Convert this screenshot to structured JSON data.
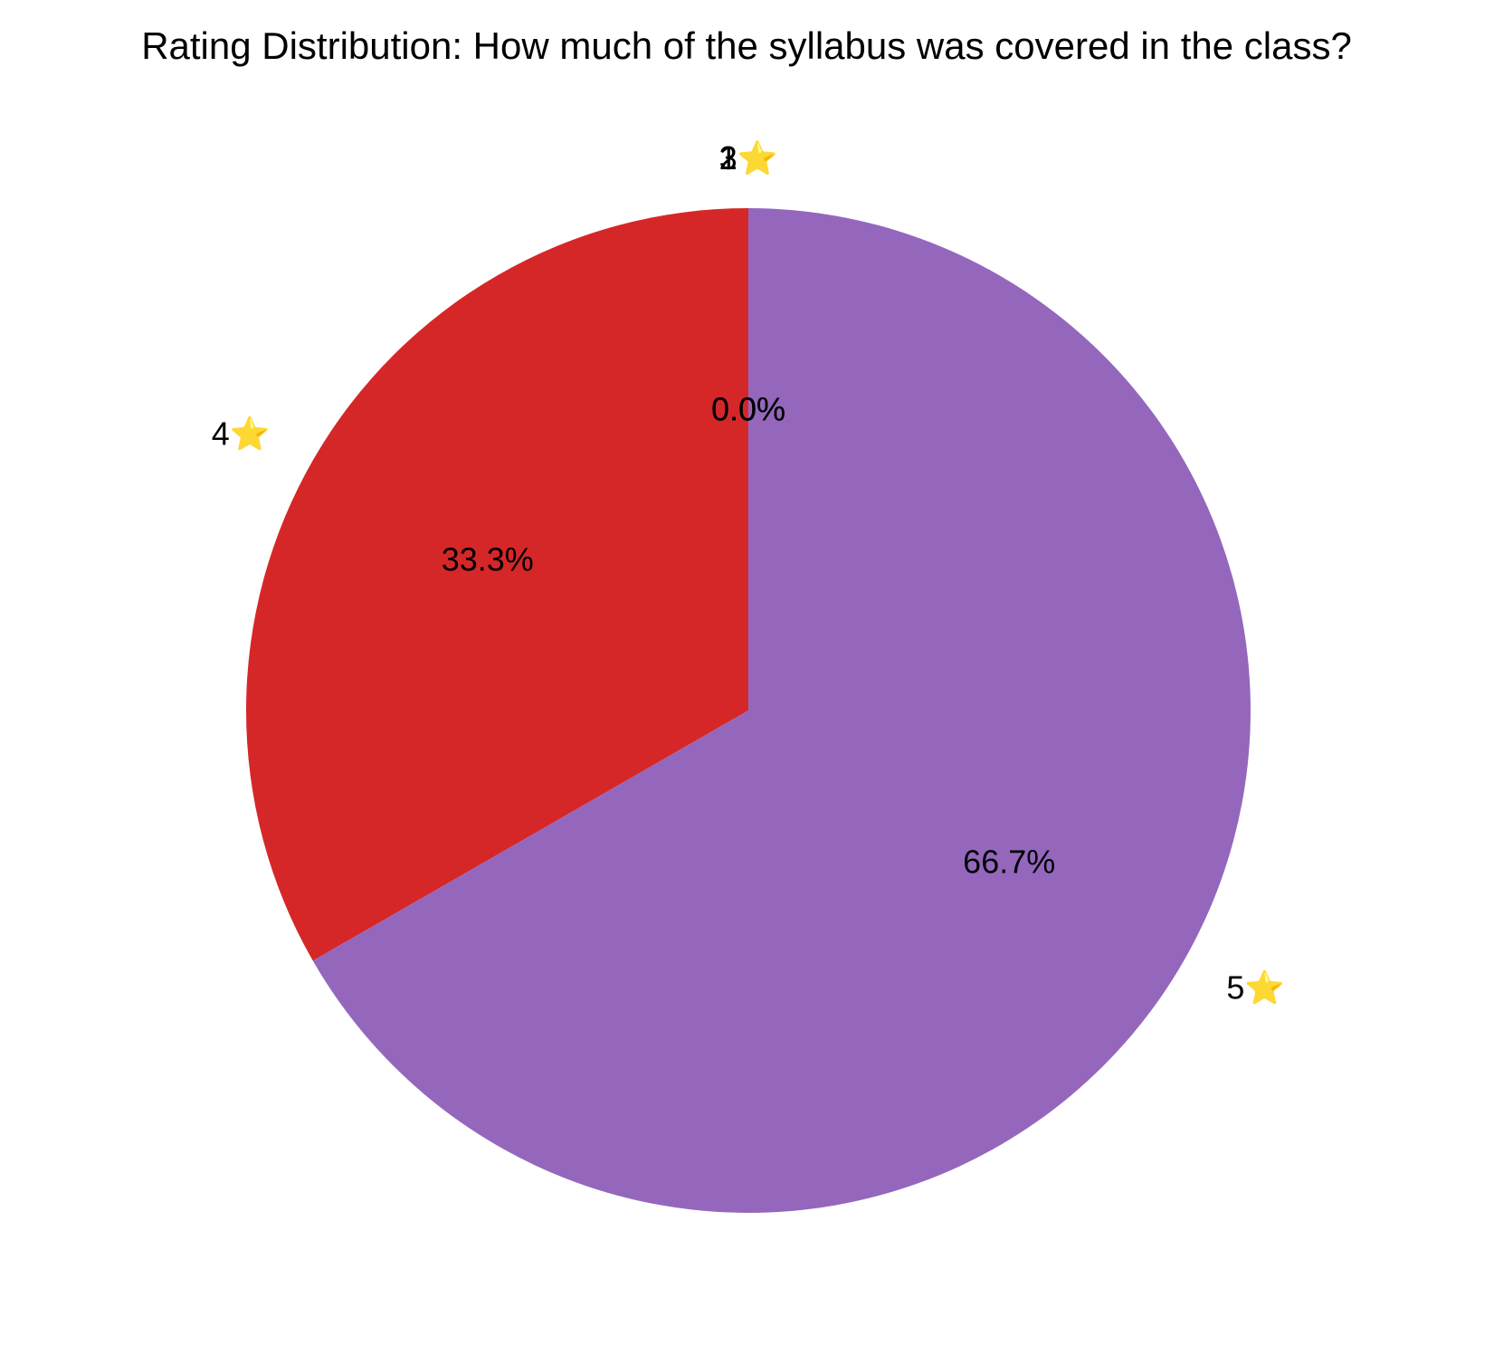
{
  "chart_data": {
    "type": "pie",
    "title": "Rating Distribution: How much of the syllabus was covered in the class?",
    "slices": [
      {
        "label": "1⭐",
        "value": 0.0,
        "pct_label": "0.0%",
        "color": "#1f77b4"
      },
      {
        "label": "2⭐",
        "value": 0.0,
        "pct_label": "0.0%",
        "color": "#ff7f0e"
      },
      {
        "label": "3⭐",
        "value": 0.0,
        "pct_label": "0.0%",
        "color": "#2ca02c"
      },
      {
        "label": "4⭐",
        "value": 33.3,
        "pct_label": "33.3%",
        "color": "#d62728"
      },
      {
        "label": "5⭐",
        "value": 66.7,
        "pct_label": "66.7%",
        "color": "#9467bd"
      }
    ],
    "start_angle": "top",
    "direction": "counterclockwise",
    "legend": "none"
  }
}
